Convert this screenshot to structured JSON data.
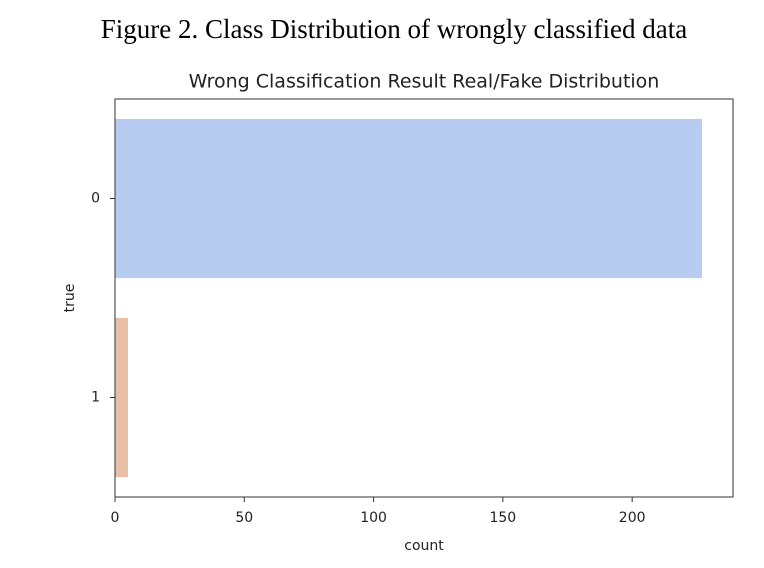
{
  "chart_data": {
    "type": "barh",
    "figure_caption": "Figure 2. Class Distribution of wrongly classified data",
    "title": "Wrong Classification Result Real/Fake Distribution",
    "xlabel": "count",
    "ylabel": "true",
    "categories": [
      "0",
      "1"
    ],
    "values": [
      227,
      5
    ],
    "colors": [
      "#b8cbf1",
      "#e9bfa6"
    ],
    "xlim": [
      0,
      239
    ],
    "xticks": [
      0,
      50,
      100,
      150,
      200
    ],
    "grid": false
  }
}
